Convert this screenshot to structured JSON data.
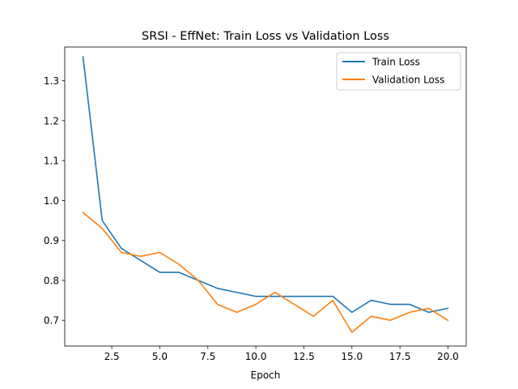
{
  "chart_data": {
    "type": "line",
    "title": "SRSI - EffNet: Train Loss vs Validation Loss",
    "xlabel": "Epoch",
    "ylabel": "",
    "xlim": [
      0.05,
      20.95
    ],
    "ylim": [
      0.6355,
      1.3845
    ],
    "xticks": [
      2.5,
      5.0,
      7.5,
      10.0,
      12.5,
      15.0,
      17.5,
      20.0
    ],
    "xtick_labels": [
      "2.5",
      "5.0",
      "7.5",
      "10.0",
      "12.5",
      "15.0",
      "17.5",
      "20.0"
    ],
    "yticks": [
      0.7,
      0.8,
      0.9,
      1.0,
      1.1,
      1.2,
      1.3
    ],
    "ytick_labels": [
      "0.7",
      "0.8",
      "0.9",
      "1.0",
      "1.1",
      "1.2",
      "1.3"
    ],
    "grid": false,
    "legend_position": "top-right",
    "x": [
      1,
      2,
      3,
      4,
      5,
      6,
      7,
      8,
      9,
      10,
      11,
      12,
      13,
      14,
      15,
      16,
      17,
      18,
      19,
      20
    ],
    "series": [
      {
        "name": "Train Loss",
        "color": "#1f77b4",
        "values": [
          1.36,
          0.95,
          0.88,
          0.85,
          0.82,
          0.82,
          0.8,
          0.78,
          0.77,
          0.76,
          0.76,
          0.76,
          0.76,
          0.76,
          0.72,
          0.75,
          0.74,
          0.74,
          0.72,
          0.73
        ]
      },
      {
        "name": "Validation Loss",
        "color": "#ff7f0e",
        "values": [
          0.97,
          0.93,
          0.87,
          0.86,
          0.87,
          0.84,
          0.8,
          0.74,
          0.72,
          0.74,
          0.77,
          0.74,
          0.71,
          0.75,
          0.67,
          0.71,
          0.7,
          0.72,
          0.73,
          0.7
        ]
      }
    ]
  }
}
